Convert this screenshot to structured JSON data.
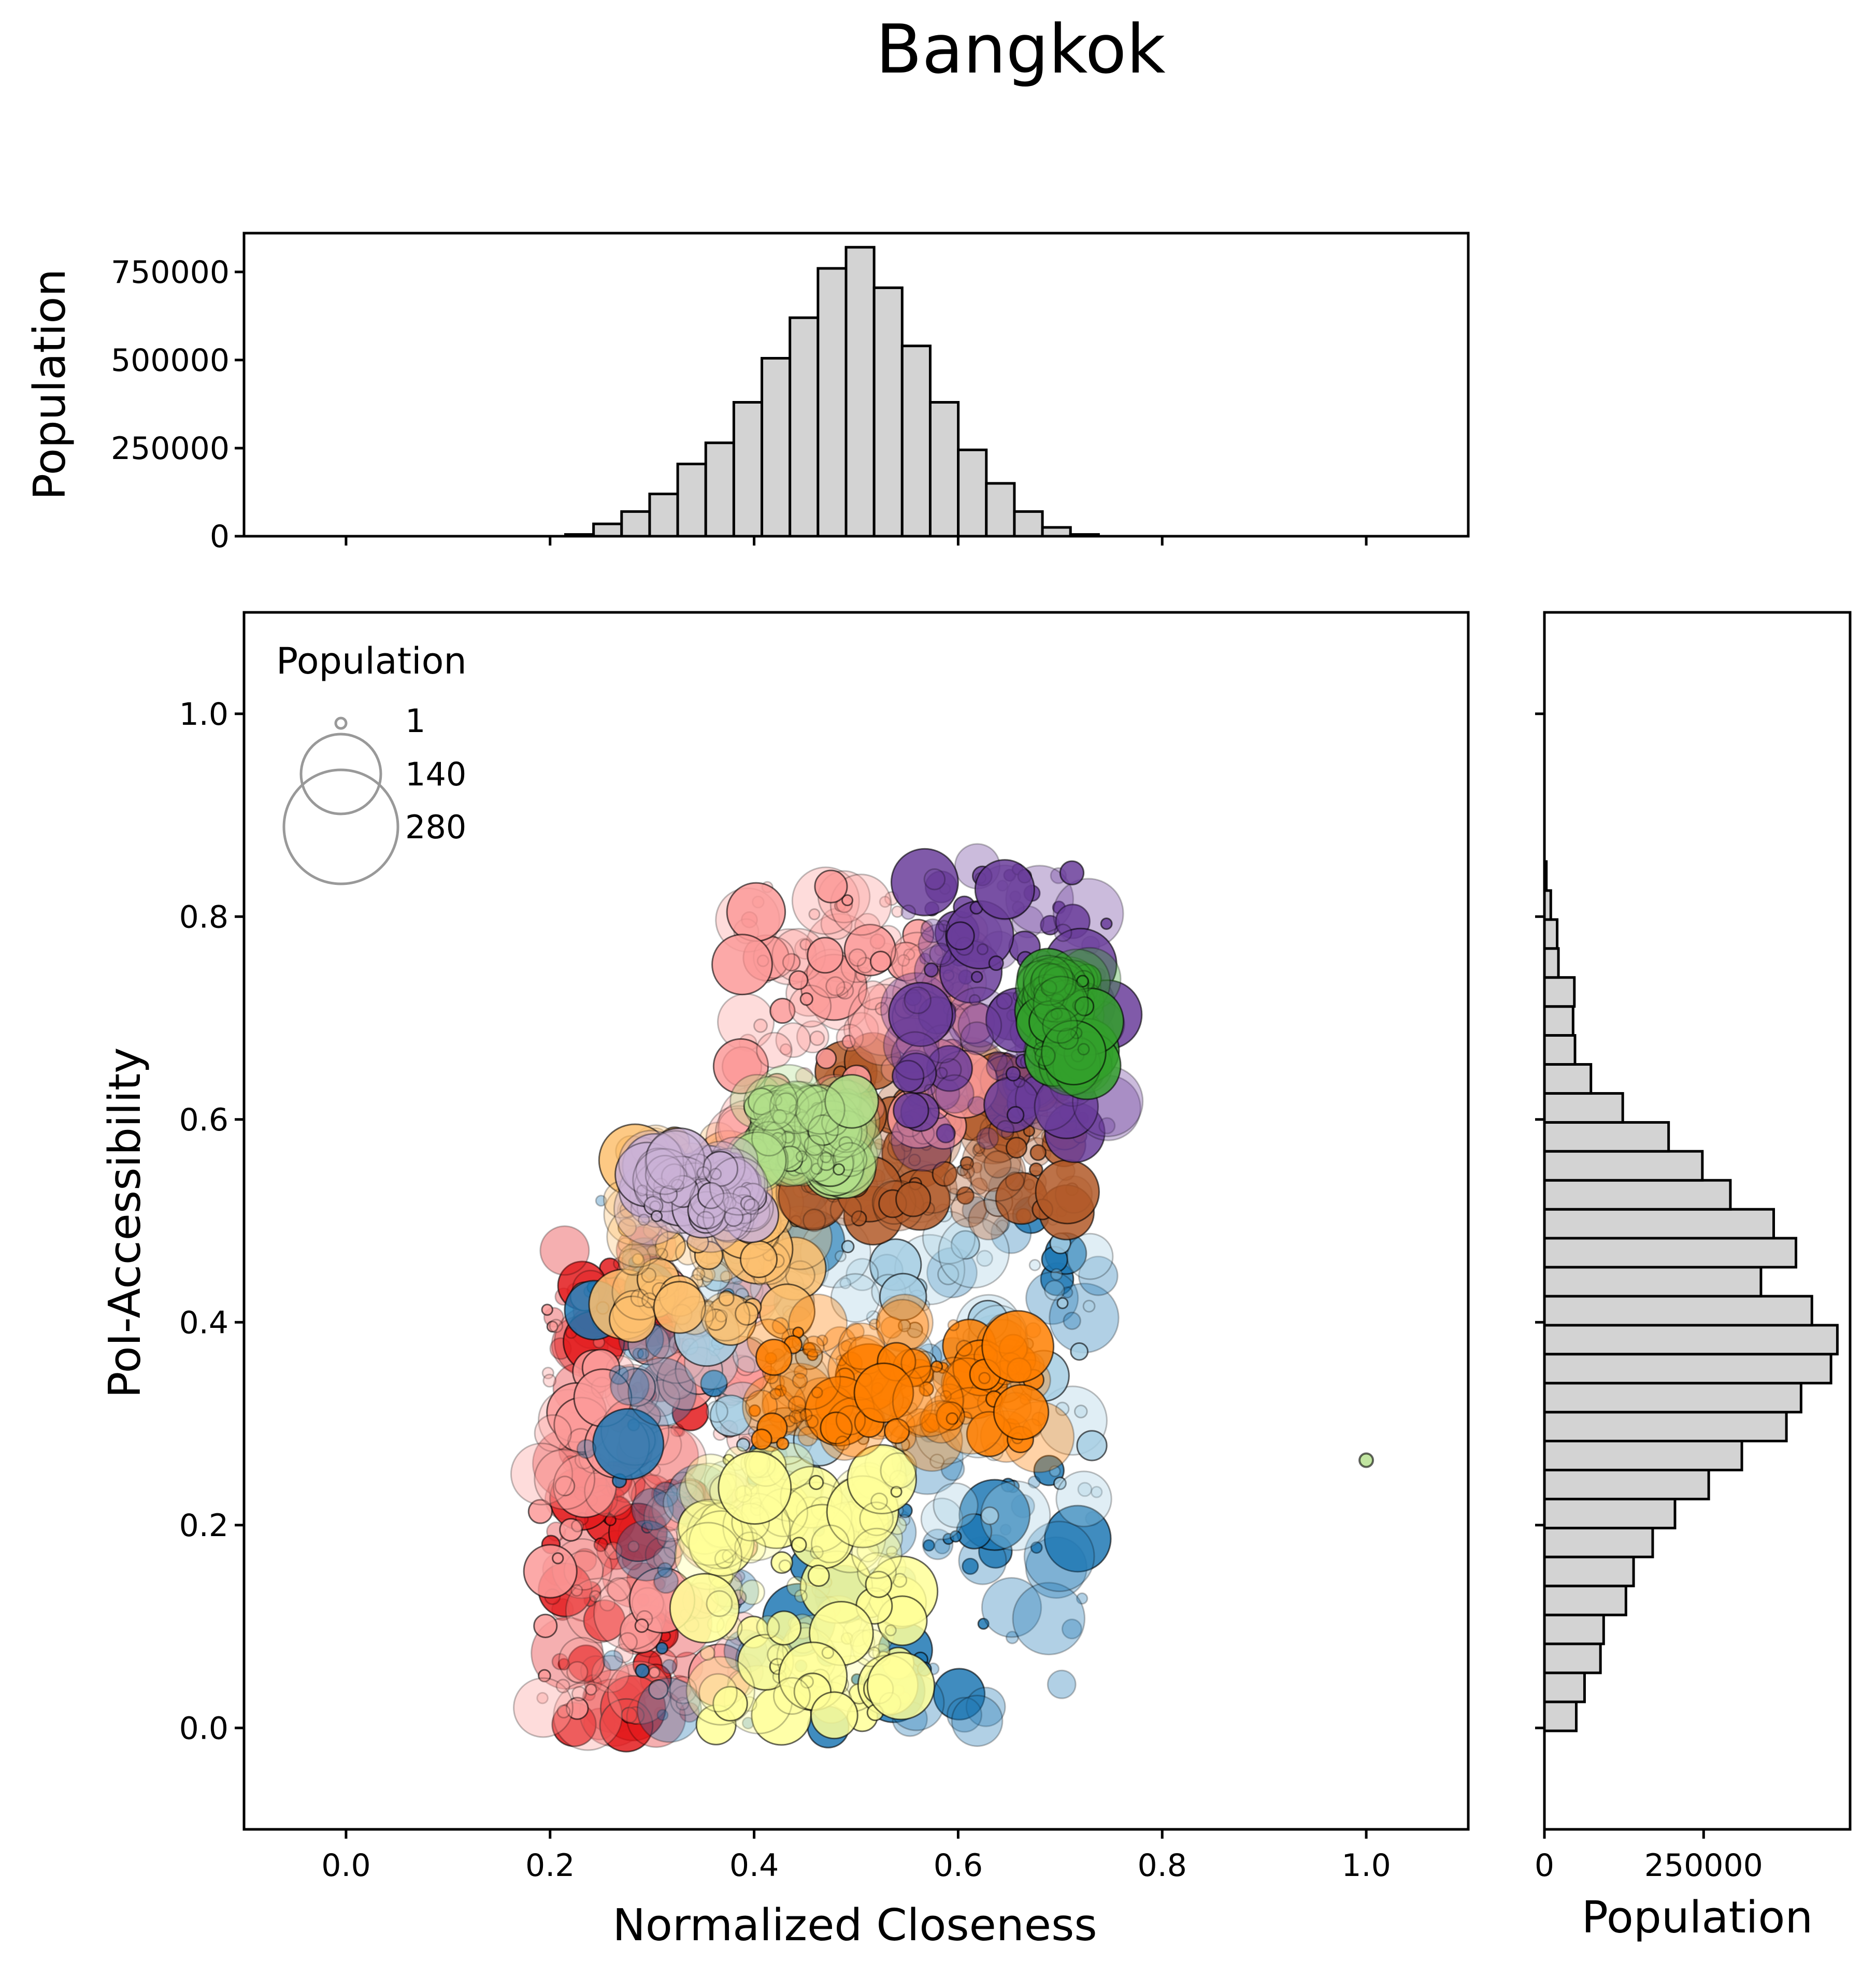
{
  "title": "Bangkok",
  "chart_data": [
    {
      "name": "top-histogram",
      "type": "bar",
      "ylabel": "Population",
      "ylim": [
        0,
        860000
      ],
      "xlim": [
        -0.1,
        1.1
      ],
      "yticks": [
        0,
        250000,
        500000,
        750000
      ],
      "ytick_labels": [
        "0",
        "250000",
        "500000",
        "750000"
      ],
      "xticks": [
        0.0,
        0.2,
        0.4,
        0.6,
        0.8,
        1.0
      ],
      "bins": [
        {
          "x0": 0.2151,
          "x1": 0.2426,
          "value": 5000
        },
        {
          "x0": 0.2426,
          "x1": 0.2701,
          "value": 35000
        },
        {
          "x0": 0.2701,
          "x1": 0.2976,
          "value": 70000
        },
        {
          "x0": 0.2976,
          "x1": 0.3251,
          "value": 120000
        },
        {
          "x0": 0.3251,
          "x1": 0.3526,
          "value": 205000
        },
        {
          "x0": 0.3526,
          "x1": 0.3801,
          "value": 265000
        },
        {
          "x0": 0.3801,
          "x1": 0.4076,
          "value": 380000
        },
        {
          "x0": 0.4076,
          "x1": 0.4351,
          "value": 505000
        },
        {
          "x0": 0.4351,
          "x1": 0.4626,
          "value": 620000
        },
        {
          "x0": 0.4626,
          "x1": 0.4901,
          "value": 760000
        },
        {
          "x0": 0.4901,
          "x1": 0.5176,
          "value": 820000
        },
        {
          "x0": 0.5176,
          "x1": 0.5451,
          "value": 705000
        },
        {
          "x0": 0.5451,
          "x1": 0.5726,
          "value": 540000
        },
        {
          "x0": 0.5726,
          "x1": 0.6001,
          "value": 380000
        },
        {
          "x0": 0.6001,
          "x1": 0.6276,
          "value": 245000
        },
        {
          "x0": 0.6276,
          "x1": 0.6551,
          "value": 150000
        },
        {
          "x0": 0.6551,
          "x1": 0.6826,
          "value": 70000
        },
        {
          "x0": 0.6826,
          "x1": 0.7101,
          "value": 25000
        },
        {
          "x0": 0.7101,
          "x1": 0.7376,
          "value": 5000
        }
      ]
    },
    {
      "name": "scatter",
      "type": "scatter",
      "xlabel": "Normalized Closeness",
      "ylabel": "PoI-Accessibility",
      "xlim": [
        -0.1,
        1.1
      ],
      "ylim": [
        -0.1,
        1.1
      ],
      "xticks": [
        0.0,
        0.2,
        0.4,
        0.6,
        0.8,
        1.0
      ],
      "xtick_labels": [
        "0.0",
        "0.2",
        "0.4",
        "0.6",
        "0.8",
        "1.0"
      ],
      "yticks": [
        0.0,
        0.2,
        0.4,
        0.6,
        0.8,
        1.0
      ],
      "ytick_labels": [
        "0.0",
        "0.2",
        "0.4",
        "0.6",
        "0.8",
        "1.0"
      ],
      "legend": {
        "title": "Population",
        "position": "upper-left",
        "entries": [
          {
            "label": "1",
            "size": 1
          },
          {
            "label": "140",
            "size": 140
          },
          {
            "label": "280",
            "size": 280
          }
        ]
      },
      "clusters": [
        {
          "color": "#e31a1c",
          "x": [
            0.2,
            0.34
          ],
          "y": [
            0.0,
            0.48
          ]
        },
        {
          "color": "#fb9a99",
          "x": [
            0.19,
            0.4
          ],
          "y": [
            0.0,
            0.45
          ]
        },
        {
          "color": "#1f78b4",
          "x": [
            0.22,
            0.74
          ],
          "y": [
            0.0,
            0.55
          ]
        },
        {
          "color": "#a6cee3",
          "x": [
            0.33,
            0.74
          ],
          "y": [
            0.2,
            0.55
          ]
        },
        {
          "color": "#ffff99",
          "x": [
            0.35,
            0.55
          ],
          "y": [
            0.0,
            0.27
          ]
        },
        {
          "color": "#fdbf6f",
          "x": [
            0.27,
            0.45
          ],
          "y": [
            0.4,
            0.58
          ]
        },
        {
          "color": "#ff7f00",
          "x": [
            0.4,
            0.68
          ],
          "y": [
            0.28,
            0.4
          ]
        },
        {
          "color": "#b15928",
          "x": [
            0.45,
            0.72
          ],
          "y": [
            0.5,
            0.66
          ]
        },
        {
          "color": "#fb9a99",
          "x": [
            0.38,
            0.62
          ],
          "y": [
            0.58,
            0.83
          ]
        },
        {
          "color": "#6a3d9a",
          "x": [
            0.55,
            0.75
          ],
          "y": [
            0.58,
            0.85
          ]
        },
        {
          "color": "#33a02c",
          "x": [
            0.68,
            0.73
          ],
          "y": [
            0.65,
            0.74
          ]
        },
        {
          "color": "#b2df8a",
          "x": [
            0.4,
            0.5
          ],
          "y": [
            0.55,
            0.62
          ]
        },
        {
          "color": "#cab2d6",
          "x": [
            0.29,
            0.4
          ],
          "y": [
            0.5,
            0.56
          ]
        }
      ],
      "points": [
        {
          "x": 1.0,
          "y": 0.264,
          "size": 10,
          "color": "#b2df8a"
        }
      ]
    },
    {
      "name": "right-histogram",
      "type": "bar",
      "orientation": "horizontal",
      "xlabel": "Population",
      "xlim": [
        0,
        480000
      ],
      "xticks": [
        0,
        250000
      ],
      "xtick_labels": [
        "0",
        "250000"
      ],
      "ylim": [
        -0.1,
        1.1
      ],
      "bins": [
        {
          "y0": -0.0029,
          "y1": 0.0257,
          "value": 50000
        },
        {
          "y0": 0.0257,
          "y1": 0.0543,
          "value": 63000
        },
        {
          "y0": 0.0543,
          "y1": 0.0829,
          "value": 88000
        },
        {
          "y0": 0.0829,
          "y1": 0.1114,
          "value": 93000
        },
        {
          "y0": 0.1114,
          "y1": 0.14,
          "value": 128000
        },
        {
          "y0": 0.14,
          "y1": 0.1686,
          "value": 140000
        },
        {
          "y0": 0.1686,
          "y1": 0.1971,
          "value": 170000
        },
        {
          "y0": 0.1971,
          "y1": 0.2257,
          "value": 205000
        },
        {
          "y0": 0.2257,
          "y1": 0.2543,
          "value": 258000
        },
        {
          "y0": 0.2543,
          "y1": 0.2829,
          "value": 310000
        },
        {
          "y0": 0.2829,
          "y1": 0.3114,
          "value": 380000
        },
        {
          "y0": 0.3114,
          "y1": 0.34,
          "value": 403000
        },
        {
          "y0": 0.34,
          "y1": 0.3686,
          "value": 450000
        },
        {
          "y0": 0.3686,
          "y1": 0.3971,
          "value": 460000
        },
        {
          "y0": 0.3971,
          "y1": 0.4257,
          "value": 420000
        },
        {
          "y0": 0.4257,
          "y1": 0.4543,
          "value": 340000
        },
        {
          "y0": 0.4543,
          "y1": 0.4829,
          "value": 395000
        },
        {
          "y0": 0.4829,
          "y1": 0.5114,
          "value": 360000
        },
        {
          "y0": 0.5114,
          "y1": 0.54,
          "value": 292000
        },
        {
          "y0": 0.54,
          "y1": 0.5686,
          "value": 248000
        },
        {
          "y0": 0.5686,
          "y1": 0.5971,
          "value": 195000
        },
        {
          "y0": 0.5971,
          "y1": 0.6257,
          "value": 123000
        },
        {
          "y0": 0.6257,
          "y1": 0.6543,
          "value": 73000
        },
        {
          "y0": 0.6543,
          "y1": 0.6829,
          "value": 48000
        },
        {
          "y0": 0.6829,
          "y1": 0.7114,
          "value": 45000
        },
        {
          "y0": 0.7114,
          "y1": 0.74,
          "value": 47000
        },
        {
          "y0": 0.74,
          "y1": 0.7686,
          "value": 22000
        },
        {
          "y0": 0.7686,
          "y1": 0.7971,
          "value": 20000
        },
        {
          "y0": 0.7971,
          "y1": 0.8257,
          "value": 10000
        },
        {
          "y0": 0.8257,
          "y1": 0.8543,
          "value": 3000
        }
      ]
    }
  ]
}
